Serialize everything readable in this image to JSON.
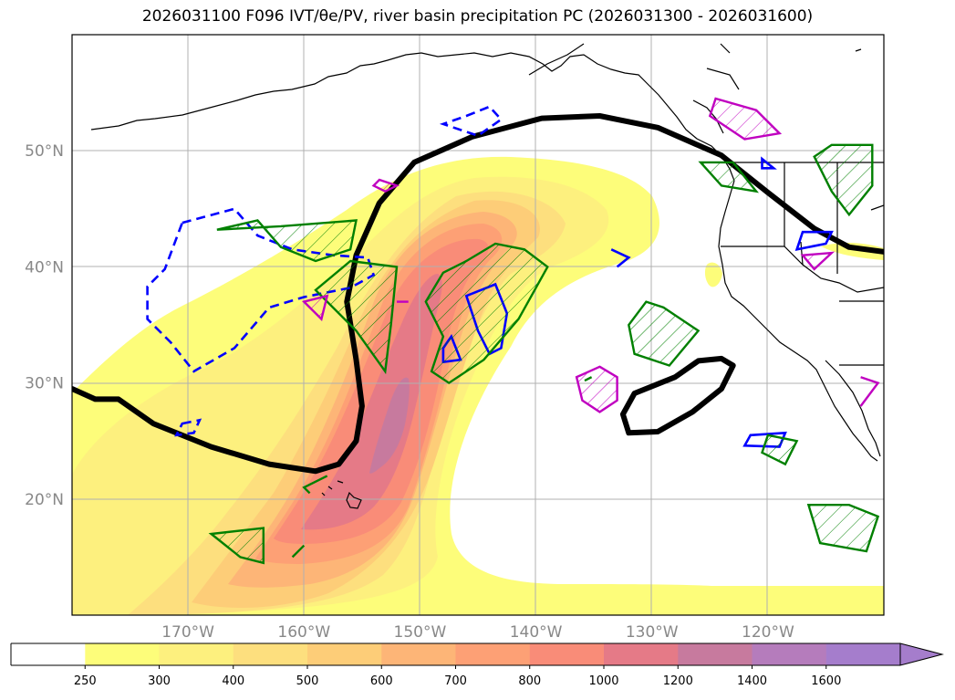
{
  "title": "2026031100 F096 IVT/θe/PV, river basin precipitation PC (2026031300 - 2026031600)",
  "chart_data": {
    "type": "map",
    "title": "2026031100 F096 IVT/θe/PV, river basin precipitation PC (2026031300 - 2026031600)",
    "lon_range": [
      -180,
      -110
    ],
    "lat_range": [
      10,
      60
    ],
    "lon_ticks": [
      {
        "value": -170,
        "label": "170°W"
      },
      {
        "value": -160,
        "label": "160°W"
      },
      {
        "value": -150,
        "label": "150°W"
      },
      {
        "value": -140,
        "label": "140°W"
      },
      {
        "value": -130,
        "label": "130°W"
      },
      {
        "value": -120,
        "label": "120°W"
      }
    ],
    "lat_ticks": [
      {
        "value": 20,
        "label": "20°N"
      },
      {
        "value": 30,
        "label": "30°N"
      },
      {
        "value": 40,
        "label": "40°N"
      },
      {
        "value": 50,
        "label": "50°N"
      }
    ],
    "grid": true,
    "colorbar": {
      "position": "bottom",
      "extend": "max",
      "levels": [
        250,
        300,
        400,
        500,
        600,
        700,
        800,
        1000,
        1200,
        1400,
        1600
      ],
      "colors": [
        "#ffffff",
        "#fdfd7a",
        "#fdf07e",
        "#fddf7e",
        "#fdcd78",
        "#fdb577",
        "#fda075",
        "#f98c78",
        "#e57a87",
        "#c77a9e",
        "#b57cbc",
        "#a57dcc"
      ]
    },
    "ivt_plume": {
      "peak_region": [
        [
          -151.5,
          27
        ],
        [
          -153,
          23
        ],
        [
          -156.5,
          21
        ]
      ],
      "peak_value_range": [
        1200,
        1400
      ]
    },
    "theta_e_contour": {
      "color": "#000000",
      "main_line": [
        [
          -180,
          29.5
        ],
        [
          -178,
          28.6
        ],
        [
          -176,
          28.6
        ],
        [
          -173,
          26.5
        ],
        [
          -168,
          24.5
        ],
        [
          -163,
          23
        ],
        [
          -159,
          22.4
        ],
        [
          -157,
          23
        ],
        [
          -155.5,
          25
        ],
        [
          -155,
          28
        ],
        [
          -155.5,
          32
        ],
        [
          -156.3,
          37
        ],
        [
          -155.5,
          41
        ],
        [
          -153.5,
          45.5
        ],
        [
          -150.5,
          49
        ],
        [
          -145.5,
          51.2
        ],
        [
          -139.5,
          52.8
        ],
        [
          -134.5,
          53
        ],
        [
          -129.5,
          52
        ],
        [
          -124,
          49.6
        ],
        [
          -120,
          46.4
        ],
        [
          -116,
          43.3
        ],
        [
          -113,
          41.7
        ],
        [
          -110,
          41.3
        ]
      ],
      "closed_loop": [
        [
          -128,
          30.5
        ],
        [
          -126,
          31.9
        ],
        [
          -124,
          32.1
        ],
        [
          -123,
          31.5
        ],
        [
          -124,
          29.5
        ],
        [
          -126.5,
          27.5
        ],
        [
          -129.5,
          25.8
        ],
        [
          -132,
          25.7
        ],
        [
          -132.5,
          27.3
        ],
        [
          -131.5,
          29.1
        ],
        [
          -128,
          30.5
        ]
      ]
    },
    "pv_contours": {
      "color": "#0000ff",
      "dashed": [
        [
          [
            -170.5,
            43.8
          ],
          [
            -166,
            45
          ],
          [
            -164,
            42.7
          ],
          [
            -161,
            41.5
          ],
          [
            -157.5,
            41
          ],
          [
            -154.5,
            40.8
          ],
          [
            -154,
            39.3
          ],
          [
            -156,
            38.2
          ],
          [
            -160,
            37.4
          ],
          [
            -163,
            36.5
          ],
          [
            -166,
            33
          ],
          [
            -169.5,
            31
          ],
          [
            -171.5,
            33.5
          ],
          [
            -173.5,
            35.5
          ],
          [
            -173.5,
            38.3
          ],
          [
            -172,
            39.8
          ],
          [
            -170.5,
            43.8
          ]
        ],
        [
          [
            -146,
            53
          ],
          [
            -144,
            53.8
          ],
          [
            -143,
            52.7
          ],
          [
            -145,
            51.3
          ],
          [
            -148,
            52.3
          ],
          [
            -146,
            53
          ]
        ],
        [
          [
            -170.5,
            26.5
          ],
          [
            -169,
            26.8
          ],
          [
            -169.5,
            25.7
          ],
          [
            -171,
            25.5
          ],
          [
            -170.5,
            26.5
          ]
        ]
      ],
      "solid": [
        [
          [
            -143.5,
            38.5
          ],
          [
            -142.5,
            36
          ],
          [
            -143,
            33
          ],
          [
            -144,
            32.5
          ],
          [
            -145,
            34.5
          ],
          [
            -146,
            37.5
          ],
          [
            -143.5,
            38.5
          ]
        ],
        [
          [
            -147.3,
            34
          ],
          [
            -146.5,
            32
          ],
          [
            -148,
            31.8
          ],
          [
            -148,
            33
          ],
          [
            -147.3,
            34
          ]
        ],
        [
          [
            -120.5,
            49.3
          ],
          [
            -119.5,
            48.5
          ],
          [
            -120.5,
            48.5
          ],
          [
            -120.5,
            49.3
          ]
        ],
        [
          [
            -117,
            43
          ],
          [
            -114.5,
            43
          ],
          [
            -115,
            42
          ],
          [
            -117.5,
            41.5
          ],
          [
            -117,
            43
          ]
        ],
        [
          [
            -121.5,
            25.5
          ],
          [
            -118.5,
            25.7
          ],
          [
            -119,
            24.5
          ],
          [
            -122,
            24.6
          ],
          [
            -121.5,
            25.5
          ]
        ],
        [
          [
            -133.5,
            41.5
          ],
          [
            -132,
            40.8
          ],
          [
            -133,
            40
          ]
        ]
      ]
    },
    "precip_pc_regions": {
      "green": [
        [
          [
            -167.5,
            43.2
          ],
          [
            -164,
            44
          ],
          [
            -162,
            41.7
          ],
          [
            -159,
            40.5
          ],
          [
            -156,
            41.5
          ],
          [
            -155.5,
            44
          ],
          [
            -162,
            43.5
          ],
          [
            -167.5,
            43.2
          ]
        ],
        [
          [
            -156,
            40.5
          ],
          [
            -152,
            40
          ],
          [
            -152.5,
            35
          ],
          [
            -153,
            31
          ],
          [
            -155.5,
            34.5
          ],
          [
            -159,
            38
          ],
          [
            -156,
            40.5
          ]
        ],
        [
          [
            -146,
            40.5
          ],
          [
            -143.5,
            42
          ],
          [
            -141,
            41.5
          ],
          [
            -139,
            40
          ],
          [
            -141.5,
            35.5
          ],
          [
            -144.5,
            32
          ],
          [
            -147.5,
            30
          ],
          [
            -149,
            31
          ],
          [
            -148,
            34
          ],
          [
            -149.5,
            37
          ],
          [
            -148,
            39.5
          ],
          [
            -146,
            40.5
          ]
        ],
        [
          [
            -130.5,
            37
          ],
          [
            -129,
            36.5
          ],
          [
            -126,
            34.5
          ],
          [
            -128.5,
            31.5
          ],
          [
            -131.5,
            32.5
          ],
          [
            -132,
            35
          ],
          [
            -130.5,
            37
          ]
        ],
        [
          [
            -125.8,
            49
          ],
          [
            -123,
            49
          ],
          [
            -121,
            46.5
          ],
          [
            -124,
            47
          ],
          [
            -125.8,
            49
          ]
        ],
        [
          [
            -114.5,
            50.5
          ],
          [
            -111,
            50.5
          ],
          [
            -111,
            47
          ],
          [
            -113,
            44.5
          ],
          [
            -114.5,
            46.5
          ],
          [
            -116,
            49.5
          ],
          [
            -114.5,
            50.5
          ]
        ],
        [
          [
            -113,
            19.5
          ],
          [
            -110.5,
            18.5
          ],
          [
            -111.5,
            15.5
          ],
          [
            -115.5,
            16.2
          ],
          [
            -116.5,
            19.5
          ],
          [
            -113,
            19.5
          ]
        ],
        [
          [
            -120,
            25.5
          ],
          [
            -117.5,
            25
          ],
          [
            -118.5,
            23
          ],
          [
            -120.5,
            24
          ],
          [
            -120,
            25.5
          ]
        ],
        [
          [
            -168,
            17
          ],
          [
            -165.5,
            15
          ],
          [
            -163.5,
            14.5
          ],
          [
            -163.5,
            17.5
          ],
          [
            -168,
            17
          ]
        ],
        [
          [
            -158,
            22
          ],
          [
            -160,
            21
          ],
          [
            -159.5,
            20.5
          ]
        ],
        [
          [
            -160,
            16
          ],
          [
            -161,
            15
          ]
        ],
        [
          [
            -135.2,
            30.5
          ],
          [
            -135.8,
            30.2
          ]
        ]
      ],
      "magenta": [
        [
          [
            -134.5,
            31.4
          ],
          [
            -133,
            30.5
          ],
          [
            -133,
            28.5
          ],
          [
            -134.5,
            27.5
          ],
          [
            -136,
            28.5
          ],
          [
            -136.5,
            30.5
          ],
          [
            -134.5,
            31.4
          ]
        ],
        [
          [
            -124.5,
            54.5
          ],
          [
            -121,
            53.5
          ],
          [
            -119,
            51.5
          ],
          [
            -122,
            51
          ],
          [
            -125,
            53
          ],
          [
            -124.5,
            54.5
          ]
        ],
        [
          [
            -160,
            37
          ],
          [
            -158,
            37.5
          ],
          [
            -158.5,
            35.5
          ],
          [
            -160,
            37
          ]
        ],
        [
          [
            -152,
            37
          ],
          [
            -151,
            37
          ]
        ],
        [
          [
            -153,
            46.5
          ],
          [
            -152,
            47
          ],
          [
            -153.5,
            47.5
          ],
          [
            -154,
            47
          ]
        ],
        [
          [
            -112,
            30.5
          ],
          [
            -110.5,
            30
          ],
          [
            -112,
            28
          ]
        ],
        [
          [
            -117,
            41
          ],
          [
            -114.5,
            41.2
          ],
          [
            -116,
            39.8
          ],
          [
            -117,
            41
          ]
        ]
      ]
    }
  }
}
